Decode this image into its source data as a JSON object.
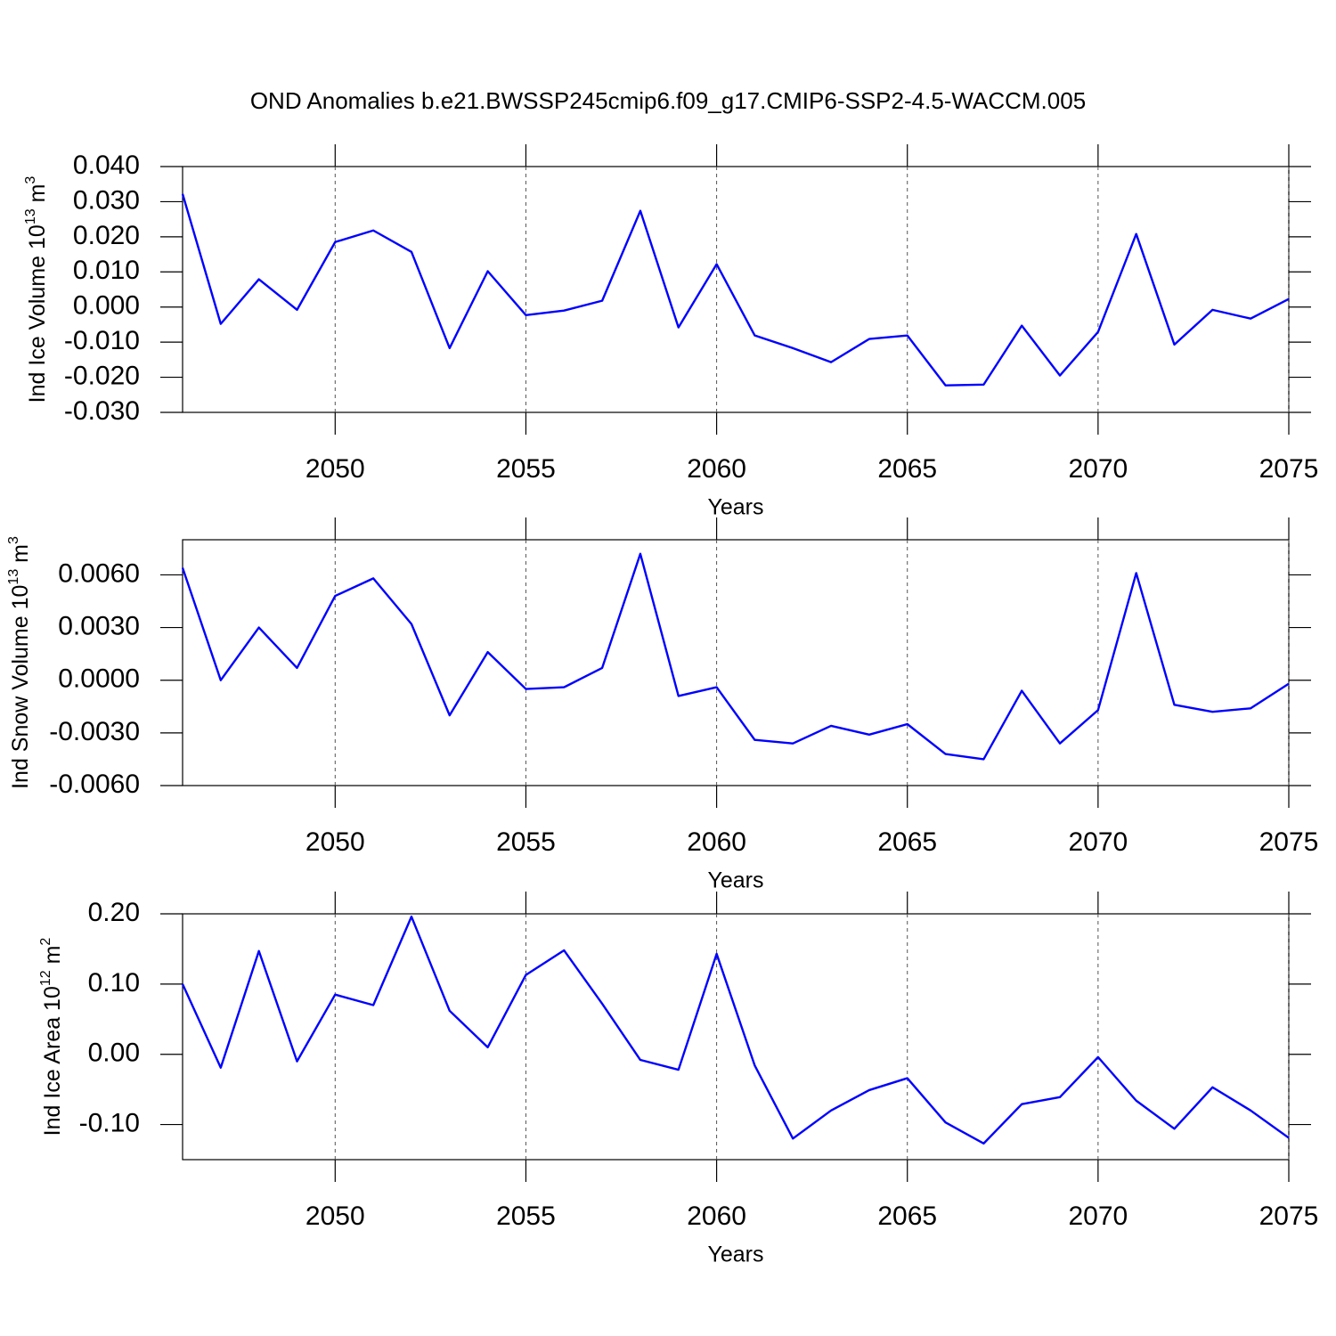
{
  "title": "OND Anomalies b.e21.BWSSP245cmip6.f09_g17.CMIP6-SSP2-4.5-WACCM.005",
  "chart_data": [
    {
      "type": "line",
      "ylabel": [
        "Ind Ice Volume 10",
        "13",
        " m",
        "3"
      ],
      "xlabel": "Years",
      "x": [
        2046,
        2047,
        2048,
        2049,
        2050,
        2051,
        2052,
        2053,
        2054,
        2055,
        2056,
        2057,
        2058,
        2059,
        2060,
        2061,
        2062,
        2063,
        2064,
        2065,
        2066,
        2067,
        2068,
        2069,
        2070,
        2071,
        2072,
        2073,
        2074,
        2075
      ],
      "series": [
        {
          "color": "#0000ff",
          "values": [
            0.0322,
            -0.0048,
            0.0079,
            -0.0008,
            0.0185,
            0.0218,
            0.0157,
            -0.0117,
            0.0102,
            -0.0023,
            -0.001,
            0.0018,
            0.0274,
            -0.0058,
            0.0122,
            -0.0081,
            -0.0117,
            -0.0157,
            -0.0091,
            -0.0081,
            -0.0223,
            -0.0221,
            -0.0053,
            -0.0195,
            -0.0071,
            0.0208,
            -0.0107,
            -0.0008,
            -0.0033,
            0.0023
          ]
        }
      ],
      "xlim": [
        2046,
        2075
      ],
      "xticks": [
        2050,
        2055,
        2060,
        2065,
        2070,
        2075
      ],
      "ylim": [
        -0.03,
        0.04
      ],
      "yticks": [
        {
          "value": 0.04,
          "label": "0.040"
        },
        {
          "value": 0.03,
          "label": "0.030"
        },
        {
          "value": 0.02,
          "label": "0.020"
        },
        {
          "value": 0.01,
          "label": "0.010"
        },
        {
          "value": 0,
          "label": "0.000"
        },
        {
          "value": -0.01,
          "label": "-0.010"
        },
        {
          "value": -0.02,
          "label": "-0.020"
        },
        {
          "value": -0.03,
          "label": "-0.030"
        }
      ],
      "xgrid": true
    },
    {
      "type": "line",
      "ylabel": [
        "Ind Snow Volume 10",
        "13",
        " m",
        "3"
      ],
      "xlabel": "Years",
      "x": [
        2046,
        2047,
        2048,
        2049,
        2050,
        2051,
        2052,
        2053,
        2054,
        2055,
        2056,
        2057,
        2058,
        2059,
        2060,
        2061,
        2062,
        2063,
        2064,
        2065,
        2066,
        2067,
        2068,
        2069,
        2070,
        2071,
        2072,
        2073,
        2074,
        2075
      ],
      "series": [
        {
          "color": "#0000ff",
          "values": [
            0.0064,
            0.0,
            0.003,
            0.0007,
            0.0048,
            0.0058,
            0.0032,
            -0.002,
            0.0016,
            -0.0005,
            -0.0004,
            0.0007,
            0.0072,
            -0.0009,
            -0.0004,
            -0.0034,
            -0.0036,
            -0.0026,
            -0.0031,
            -0.0025,
            -0.0042,
            -0.0045,
            -0.0006,
            -0.0036,
            -0.0017,
            0.0061,
            -0.0014,
            -0.0018,
            -0.0016,
            -0.0002
          ]
        }
      ],
      "xlim": [
        2046,
        2075
      ],
      "xticks": [
        2050,
        2055,
        2060,
        2065,
        2070,
        2075
      ],
      "ylim": [
        -0.006,
        0.008
      ],
      "yticks": [
        {
          "value": 0.006,
          "label": "0.0060"
        },
        {
          "value": 0.003,
          "label": "0.0030"
        },
        {
          "value": 0,
          "label": "0.0000"
        },
        {
          "value": -0.003,
          "label": "-0.0030"
        },
        {
          "value": -0.006,
          "label": "-0.0060"
        }
      ],
      "xgrid": true
    },
    {
      "type": "line",
      "ylabel": [
        "Ind Ice Area 10",
        "12",
        " m",
        "2"
      ],
      "xlabel": "Years",
      "x": [
        2046,
        2047,
        2048,
        2049,
        2050,
        2051,
        2052,
        2053,
        2054,
        2055,
        2056,
        2057,
        2058,
        2059,
        2060,
        2061,
        2062,
        2063,
        2064,
        2065,
        2066,
        2067,
        2068,
        2069,
        2070,
        2071,
        2072,
        2073,
        2074,
        2075
      ],
      "series": [
        {
          "color": "#0000ff",
          "values": [
            0.1,
            -0.019,
            0.147,
            -0.01,
            0.085,
            0.07,
            0.196,
            0.062,
            0.01,
            0.113,
            0.148,
            0.072,
            -0.008,
            -0.022,
            0.143,
            -0.016,
            -0.12,
            -0.08,
            -0.051,
            -0.034,
            -0.097,
            -0.127,
            -0.071,
            -0.061,
            -0.004,
            -0.066,
            -0.106,
            -0.047,
            -0.08,
            -0.119
          ]
        }
      ],
      "xlim": [
        2046,
        2075
      ],
      "xticks": [
        2050,
        2055,
        2060,
        2065,
        2070,
        2075
      ],
      "ylim": [
        -0.15,
        0.2
      ],
      "yticks": [
        {
          "value": 0.2,
          "label": "0.20"
        },
        {
          "value": 0.1,
          "label": "0.10"
        },
        {
          "value": 0,
          "label": "0.00"
        },
        {
          "value": -0.1,
          "label": "-0.10"
        }
      ],
      "xgrid": true
    }
  ]
}
